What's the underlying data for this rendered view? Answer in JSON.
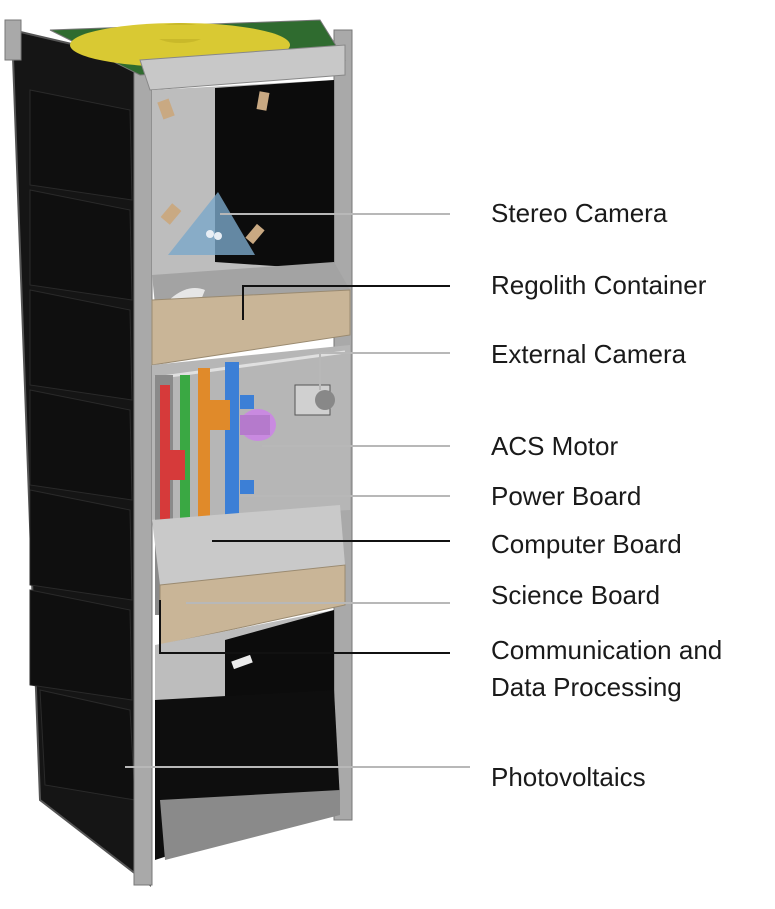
{
  "labels": {
    "stereo_camera": "Stereo Camera",
    "regolith_container": "Regolith Container",
    "external_camera": "External Camera",
    "acs_motor": "ACS Motor",
    "power_board": "Power Board",
    "computer_board": "Computer Board",
    "science_board": "Science Board",
    "comm_line1": "Communication and",
    "comm_line2": "Data Processing",
    "photovoltaics": "Photovoltaics"
  },
  "colors": {
    "frame": "#a9a9a9",
    "panel": "#121212",
    "interior": "#bdbdbd",
    "tray": "#c9b597",
    "lid": "#d9c933",
    "board_red": "#d63a3a",
    "board_green": "#3aa843",
    "board_orange": "#e08a2a",
    "board_blue": "#3c7fd6",
    "motor": "#c98ae0",
    "leader_dark": "#111111",
    "leader_light": "#b8b8b8"
  }
}
